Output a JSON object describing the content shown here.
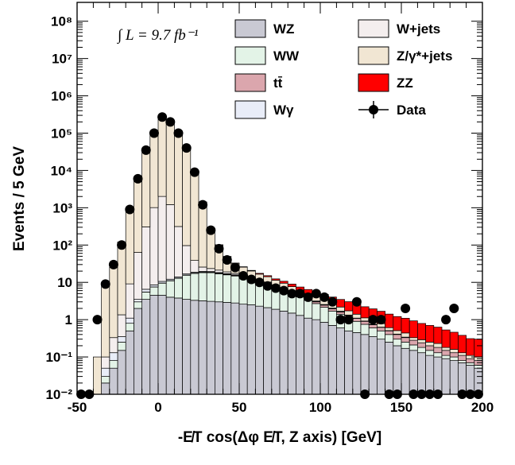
{
  "chart_data": {
    "type": "stacked-histogram",
    "annotation": "∫ L = 9.7 fb⁻¹",
    "x_label": "-E̸T cos(Δφ E̸T, Z axis) [GeV]",
    "y_label": "Events / 5 GeV",
    "log_y": true,
    "bins": [
      -50,
      -45,
      -40,
      -35,
      -30,
      -25,
      -20,
      -15,
      -10,
      -5,
      0,
      5,
      10,
      15,
      20,
      25,
      30,
      35,
      40,
      45,
      50,
      55,
      60,
      65,
      70,
      75,
      80,
      85,
      90,
      95,
      100,
      105,
      110,
      115,
      120,
      125,
      130,
      135,
      140,
      145,
      150,
      155,
      160,
      165,
      170,
      175,
      180,
      185,
      190,
      195,
      200
    ],
    "xlim": [
      -50,
      200
    ],
    "xticks": [
      -50,
      0,
      50,
      100,
      150,
      200
    ],
    "ylim": [
      0.01,
      320000000
    ],
    "yticks": [
      {
        "value": 0.01,
        "label": "10⁻²"
      },
      {
        "value": 0.1,
        "label": "10⁻¹"
      },
      1,
      10,
      {
        "value": 100,
        "label": "10²"
      },
      {
        "value": 1000,
        "label": "10³"
      },
      {
        "value": 10000,
        "label": "10⁴"
      },
      {
        "value": 100000,
        "label": "10⁵"
      },
      {
        "value": 1000000,
        "label": "10⁶"
      },
      {
        "value": 10000000,
        "label": "10⁷"
      },
      {
        "value": 100000000,
        "label": "10⁸"
      }
    ],
    "series": [
      {
        "name": "WZ",
        "color": "#c9c9d3",
        "values": [
          0,
          0,
          0,
          0.02,
          0.05,
          0.15,
          0.5,
          2,
          3.5,
          4.5,
          4.5,
          4,
          3.8,
          3.5,
          3.3,
          3.2,
          3.1,
          3,
          2.9,
          2.8,
          2.6,
          2.5,
          2.3,
          2.1,
          1.9,
          1.7,
          1.5,
          1.3,
          1.1,
          1,
          0.85,
          0.7,
          0.6,
          0.5,
          0.45,
          0.4,
          0.35,
          0.3,
          0.25,
          0.2,
          0.17,
          0.15,
          0.13,
          0.11,
          0.1,
          0.09,
          0.08,
          0.07,
          0.06,
          0.05
        ]
      },
      {
        "name": "WW",
        "color": "#e3f3e7",
        "values": [
          0,
          0,
          0,
          0.01,
          0.03,
          0.1,
          0.3,
          1,
          2,
          3,
          5,
          7,
          9,
          12,
          14,
          15,
          15,
          14,
          13,
          12,
          11,
          9,
          8,
          7,
          5.5,
          4.5,
          3.5,
          2.8,
          2.2,
          1.7,
          1.3,
          1,
          0.8,
          0.6,
          0.45,
          0.35,
          0.25,
          0.2,
          0.15,
          0.1,
          0.08,
          0.06,
          0.05,
          0.04,
          0.03,
          0.02,
          0.02,
          0.01,
          0.01,
          0.01
        ]
      },
      {
        "name": "tt̄",
        "color": "#dba6ad",
        "values": [
          0,
          0,
          0,
          0,
          0,
          0,
          0,
          0,
          0.02,
          0.05,
          0.1,
          0.15,
          0.2,
          0.3,
          0.4,
          0.5,
          0.6,
          0.6,
          0.6,
          0.6,
          0.6,
          0.6,
          0.55,
          0.5,
          0.5,
          0.45,
          0.4,
          0.4,
          0.35,
          0.3,
          0.3,
          0.25,
          0.2,
          0.2,
          0.18,
          0.15,
          0.13,
          0.12,
          0.1,
          0.1,
          0.08,
          0.07,
          0.06,
          0.05,
          0.05,
          0.04,
          0.03,
          0.03,
          0.02,
          0.02
        ]
      },
      {
        "name": "Wγ",
        "color": "#e9edf8",
        "values": [
          0,
          0,
          0,
          0.02,
          0.05,
          0.1,
          0.3,
          0.5,
          1,
          1,
          1,
          1,
          1,
          1,
          1,
          1,
          0.8,
          0.7,
          0.6,
          0.5,
          0.4,
          0.3,
          0.3,
          0.2,
          0.2,
          0.15,
          0.1,
          0.1,
          0.08,
          0.06,
          0.05,
          0.04,
          0.03,
          0.03,
          0.02,
          0.02,
          0.02,
          0.01,
          0.01,
          0.01,
          0.01,
          0,
          0,
          0,
          0,
          0,
          0,
          0,
          0,
          0
        ]
      },
      {
        "name": "W+jets",
        "color": "#f4eeee",
        "values": [
          0,
          0,
          0,
          0.05,
          0.2,
          1,
          8,
          60,
          300,
          1000,
          2000,
          1200,
          300,
          80,
          20,
          6,
          4,
          3,
          2,
          1.5,
          1,
          0.8,
          0.5,
          0.4,
          0.3,
          0.2,
          0.2,
          0.1,
          0.1,
          0.1,
          0.05,
          0.05,
          0.05,
          0,
          0,
          0,
          0,
          0,
          0,
          0,
          0,
          0,
          0,
          0,
          0,
          0,
          0,
          0,
          0,
          0
        ]
      },
      {
        "name": "Z/γ*+jets",
        "color": "#f1e6d3",
        "values": [
          0,
          0,
          0.1,
          10,
          25,
          120,
          900,
          6000,
          35000,
          100000,
          230000,
          190000,
          100000,
          40000,
          9000,
          1400,
          250,
          80,
          30,
          15,
          10,
          7,
          5,
          4,
          3,
          2.5,
          2,
          1.5,
          1.2,
          1,
          0.8,
          0.6,
          0.5,
          0.4,
          0.3,
          0.2,
          0.2,
          0.15,
          0.1,
          0.1,
          0.1,
          0.05,
          0.05,
          0.05,
          0.05,
          0.03,
          0.03,
          0.02,
          0.02,
          0.02
        ]
      },
      {
        "name": "ZZ",
        "color": "#ff0000",
        "values": [
          0,
          0,
          0,
          0,
          0,
          0,
          0,
          0,
          0,
          0.01,
          0.02,
          0.03,
          0.05,
          0.08,
          0.1,
          0.15,
          0.2,
          0.3,
          0.4,
          0.5,
          0.6,
          0.7,
          0.8,
          0.9,
          1,
          1.2,
          1.3,
          1.3,
          1.4,
          1.4,
          1.4,
          1.4,
          1.3,
          1.3,
          1.2,
          1.1,
          1,
          0.9,
          0.8,
          0.7,
          0.65,
          0.6,
          0.5,
          0.45,
          0.4,
          0.35,
          0.3,
          0.25,
          0.2,
          0.2
        ]
      }
    ],
    "data": {
      "name": "Data",
      "color": "#000000",
      "values": [
        0,
        0,
        1,
        9,
        30,
        100,
        900,
        6000,
        35000,
        100000,
        270000,
        200000,
        100000,
        40000,
        9000,
        1200,
        250,
        80,
        40,
        25,
        15,
        12,
        10,
        8,
        7,
        6,
        5,
        5,
        4,
        5,
        4,
        3,
        1,
        1,
        3,
        0,
        1,
        1,
        0,
        0,
        2,
        0,
        0,
        0,
        0,
        1,
        2,
        0,
        0,
        0
      ]
    }
  }
}
